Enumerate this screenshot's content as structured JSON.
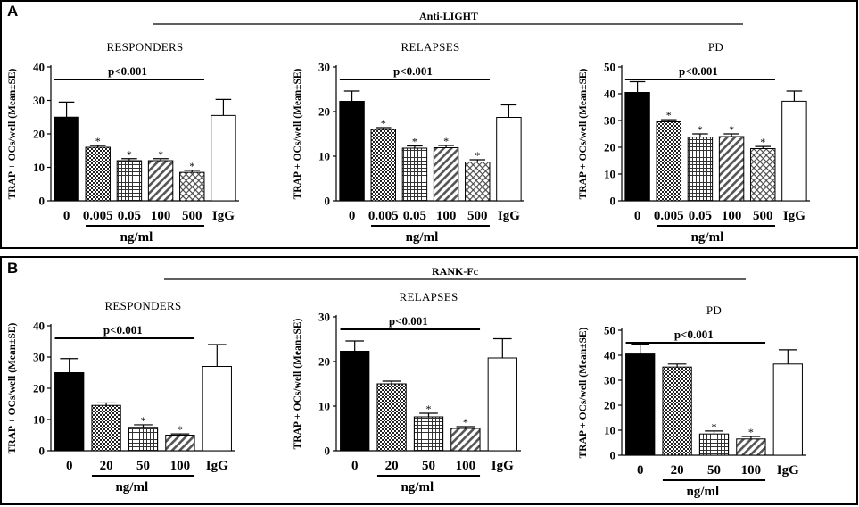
{
  "panels": [
    {
      "letter": "A",
      "treatment": "Anti-LIGHT",
      "ylabel": "TRAP + OCs/well (Mean±SE)",
      "unit_label": "ng/ml",
      "p_label": "p<0.001",
      "star_label": "*"
    },
    {
      "letter": "B",
      "treatment": "RANK-Fc",
      "ylabel": "TRAP + OCs/well (Mean±SE)",
      "unit_label": "ng/ml",
      "p_label": "p<0.001",
      "star_label": "*"
    }
  ],
  "patterns": [
    "solid",
    "checker",
    "grid",
    "diag-right",
    "crosshatch",
    "empty"
  ],
  "chart_data": [
    {
      "panel": "A",
      "type": "bar",
      "title": "RESPONDERS",
      "categories": [
        "0",
        "0.005",
        "0.05",
        "100",
        "500",
        "IgG"
      ],
      "values": [
        25,
        16,
        12,
        12,
        8.5,
        25.5
      ],
      "errors": [
        4.5,
        0.5,
        0.6,
        0.6,
        0.6,
        4.8
      ],
      "significant": [
        false,
        true,
        true,
        true,
        true,
        false
      ],
      "yticks": [
        0,
        10,
        20,
        30,
        40
      ],
      "ylim": [
        0,
        40
      ]
    },
    {
      "panel": "A",
      "type": "bar",
      "title": "RELAPSES",
      "categories": [
        "0",
        "0.005",
        "0.05",
        "100",
        "500",
        "IgG"
      ],
      "values": [
        22.3,
        16,
        11.8,
        11.9,
        8.7,
        18.7
      ],
      "errors": [
        2.3,
        0.4,
        0.5,
        0.5,
        0.5,
        2.8
      ],
      "significant": [
        false,
        true,
        true,
        true,
        true,
        false
      ],
      "yticks": [
        0,
        10,
        20,
        30
      ],
      "ylim": [
        0,
        30
      ]
    },
    {
      "panel": "A",
      "type": "bar",
      "title": "PD",
      "categories": [
        "0",
        "0.005",
        "0.05",
        "100",
        "500",
        "IgG"
      ],
      "values": [
        40.5,
        29.5,
        23.8,
        24,
        19.5,
        37.2
      ],
      "errors": [
        4,
        0.8,
        1.2,
        1,
        0.8,
        3.8
      ],
      "significant": [
        false,
        true,
        true,
        true,
        true,
        false
      ],
      "yticks": [
        0,
        10,
        20,
        30,
        40,
        50
      ],
      "ylim": [
        0,
        50
      ]
    },
    {
      "panel": "B",
      "type": "bar",
      "title": "RESPONDERS",
      "categories": [
        "0",
        "20",
        "50",
        "100",
        "IgG"
      ],
      "values": [
        25,
        14.5,
        7.5,
        5,
        27
      ],
      "errors": [
        4.5,
        0.8,
        0.8,
        0.4,
        7
      ],
      "significant": [
        false,
        false,
        true,
        true,
        false
      ],
      "yticks": [
        0,
        10,
        20,
        30,
        40
      ],
      "ylim": [
        0,
        40
      ]
    },
    {
      "panel": "B",
      "type": "bar",
      "title": "RELAPSES",
      "categories": [
        "0",
        "20",
        "50",
        "100",
        "IgG"
      ],
      "values": [
        22.3,
        15,
        7.6,
        5,
        20.8
      ],
      "errors": [
        2.3,
        0.6,
        0.8,
        0.4,
        4.3
      ],
      "significant": [
        false,
        false,
        true,
        true,
        false
      ],
      "yticks": [
        0,
        10,
        20,
        30
      ],
      "ylim": [
        0,
        30
      ]
    },
    {
      "panel": "B",
      "type": "bar",
      "title": "PD",
      "categories": [
        "0",
        "20",
        "50",
        "100",
        "IgG"
      ],
      "values": [
        40.5,
        35.3,
        8.5,
        6.5,
        36.5
      ],
      "errors": [
        4,
        1.2,
        1.2,
        1,
        5.7
      ],
      "significant": [
        false,
        false,
        true,
        true,
        false
      ],
      "yticks": [
        0,
        10,
        20,
        30,
        40,
        50
      ],
      "ylim": [
        0,
        50
      ]
    }
  ]
}
